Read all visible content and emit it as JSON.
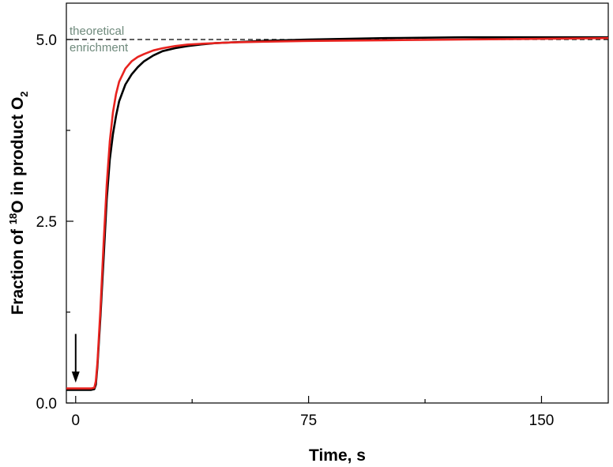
{
  "chart_data": {
    "type": "line",
    "title": "",
    "xlabel": "Time, s",
    "ylabel": {
      "part1": "Fraction of ",
      "sup": "18",
      "part2": "O in product O",
      "sub": "2"
    },
    "xlim": [
      -3,
      171.5
    ],
    "ylim": [
      0,
      5.5
    ],
    "x_ticks": [
      0,
      75,
      150
    ],
    "x_minor_ticks": [
      37.5,
      112.5
    ],
    "y_ticks": [
      0,
      2.5,
      5
    ],
    "y_minor_ticks": [
      1.25,
      3.75
    ],
    "x_tick_labels": [
      "0",
      "75",
      "150"
    ],
    "y_tick_labels": [
      "0.0",
      "2.5",
      "5.0"
    ],
    "grid": false,
    "reference_line": {
      "y": 5.0,
      "style": "dashed",
      "color": "#000000",
      "label_line1": "theoretical",
      "label_line2": "enrichment"
    },
    "arrow": {
      "x": 0,
      "y_from": 0.95,
      "y_to": 0.28,
      "color": "#000000"
    },
    "series": [
      {
        "color": "#000000",
        "x": [
          -3,
          0,
          5,
          6,
          6.5,
          7,
          8,
          9,
          10,
          11,
          12,
          13,
          14,
          16,
          18,
          20,
          22,
          25,
          28,
          32,
          36,
          40,
          45,
          50,
          60,
          75,
          100,
          125,
          150,
          171.5
        ],
        "y": [
          0.18,
          0.18,
          0.18,
          0.19,
          0.25,
          0.5,
          1.2,
          2.0,
          2.8,
          3.35,
          3.7,
          3.95,
          4.15,
          4.38,
          4.52,
          4.62,
          4.7,
          4.78,
          4.84,
          4.88,
          4.91,
          4.93,
          4.95,
          4.96,
          4.98,
          5.0,
          5.02,
          5.03,
          5.03,
          5.03
        ]
      },
      {
        "color": "#e8231f",
        "x": [
          -3,
          0,
          5,
          6,
          6.5,
          7,
          8,
          9,
          10,
          11,
          12,
          13,
          14,
          16,
          18,
          20,
          22,
          25,
          28,
          32,
          36,
          40,
          45,
          50,
          60,
          75,
          100,
          125,
          150,
          171.5
        ],
        "y": [
          0.2,
          0.2,
          0.2,
          0.21,
          0.3,
          0.55,
          1.3,
          2.2,
          3.0,
          3.6,
          4.0,
          4.25,
          4.42,
          4.6,
          4.7,
          4.76,
          4.8,
          4.85,
          4.88,
          4.91,
          4.93,
          4.94,
          4.95,
          4.96,
          4.97,
          4.98,
          4.99,
          5.0,
          5.01,
          5.02
        ]
      }
    ]
  }
}
